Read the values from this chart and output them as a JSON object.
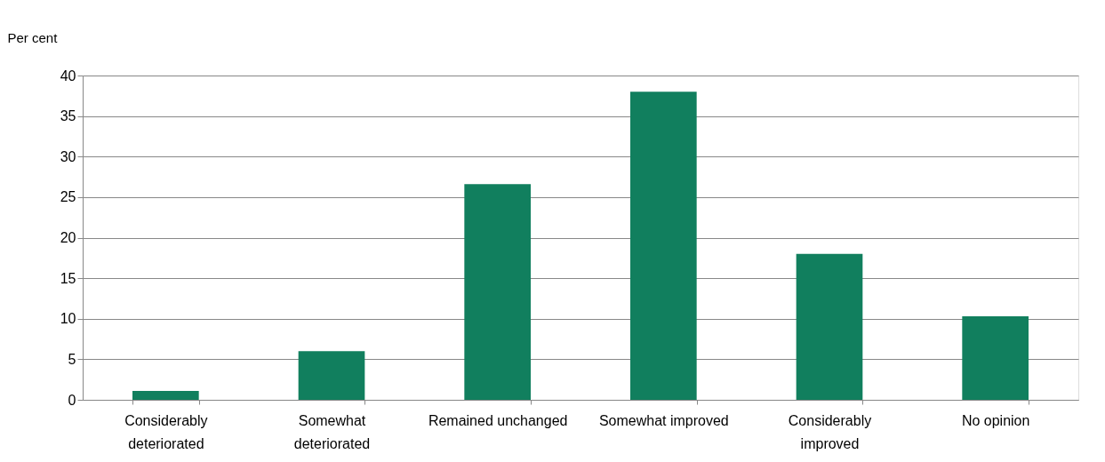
{
  "chart_data": {
    "type": "bar",
    "ylabel": "Per cent",
    "categories": [
      "Considerably deteriorated",
      "Somewhat deteriorated",
      "Remained unchanged",
      "Somewhat improved",
      "Considerably improved",
      "No opinion"
    ],
    "values": [
      1.1,
      6.0,
      26.6,
      38.0,
      18.0,
      10.3
    ],
    "color": "#117f5e",
    "ylim": [
      0,
      40
    ],
    "yticks": [
      0,
      5,
      10,
      15,
      20,
      25,
      30,
      35,
      40
    ],
    "grid": "y"
  }
}
